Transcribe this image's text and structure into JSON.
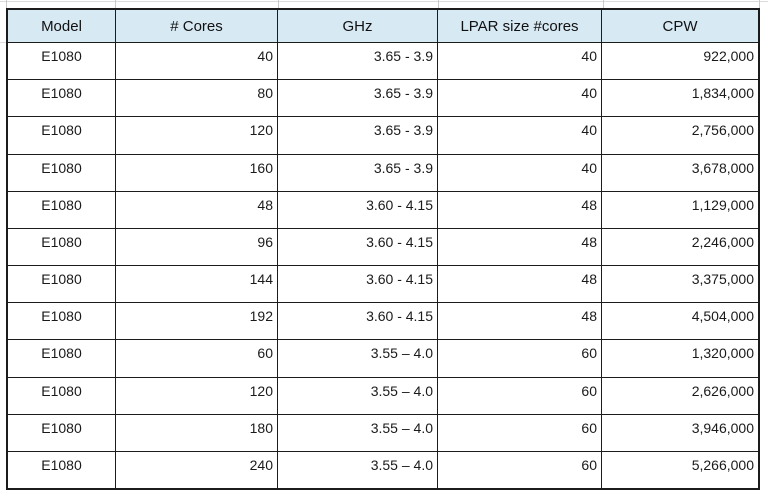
{
  "table": {
    "header_fill": "#d7e9f3",
    "border_color": "#1c1c1c",
    "text_color": "#1a1a1a",
    "columns": [
      {
        "key": "model",
        "label": "Model",
        "align": "center"
      },
      {
        "key": "cores",
        "label": "# Cores",
        "align": "right"
      },
      {
        "key": "ghz",
        "label": "GHz",
        "align": "right"
      },
      {
        "key": "lpar-size",
        "label": "LPAR size #cores",
        "align": "right"
      },
      {
        "key": "cpw",
        "label": "CPW",
        "align": "right"
      }
    ],
    "rows": [
      [
        "E1080",
        "40",
        "3.65 - 3.9",
        "40",
        "922,000"
      ],
      [
        "E1080",
        "80",
        "3.65 - 3.9",
        "40",
        "1,834,000"
      ],
      [
        "E1080",
        "120",
        "3.65 - 3.9",
        "40",
        "2,756,000"
      ],
      [
        "E1080",
        "160",
        "3.65 - 3.9",
        "40",
        "3,678,000"
      ],
      [
        "E1080",
        "48",
        "3.60 - 4.15",
        "48",
        "1,129,000"
      ],
      [
        "E1080",
        "96",
        "3.60 - 4.15",
        "48",
        "2,246,000"
      ],
      [
        "E1080",
        "144",
        "3.60 - 4.15",
        "48",
        "3,375,000"
      ],
      [
        "E1080",
        "192",
        "3.60 - 4.15",
        "48",
        "4,504,000"
      ],
      [
        "E1080",
        "60",
        "3.55 – 4.0",
        "60",
        "1,320,000"
      ],
      [
        "E1080",
        "120",
        "3.55 – 4.0",
        "60",
        "2,626,000"
      ],
      [
        "E1080",
        "180",
        "3.55 – 4.0",
        "60",
        "3,946,000"
      ],
      [
        "E1080",
        "240",
        "3.55 – 4.0",
        "60",
        "5,266,000"
      ]
    ]
  }
}
